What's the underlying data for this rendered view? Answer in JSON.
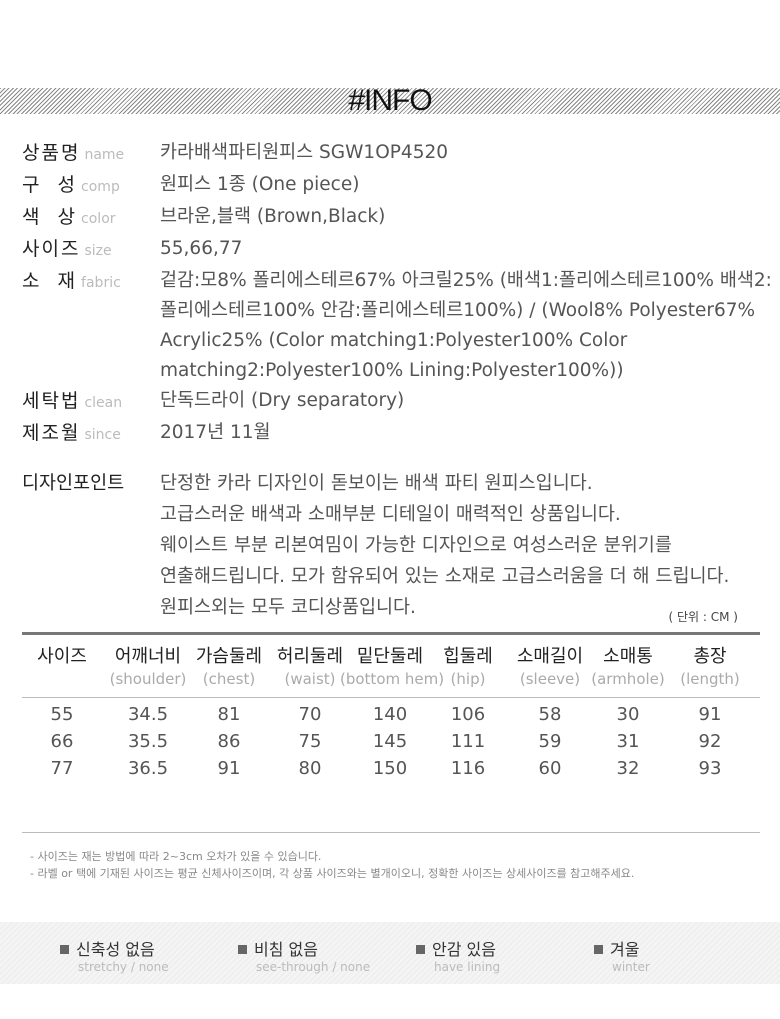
{
  "banner": {
    "title": "#INFO"
  },
  "info": [
    {
      "ko": "상품명",
      "en": "name",
      "value": "카라배색파티원피스  SGW1OP4520"
    },
    {
      "ko": "구  성",
      "en": "comp",
      "value": "원피스 1종 (One piece)"
    },
    {
      "ko": "색  상",
      "en": "color",
      "value": "브라운,블랙 (Brown,Black)"
    },
    {
      "ko": "사이즈",
      "en": "size",
      "value": "55,66,77"
    },
    {
      "ko": "소  재",
      "en": "fabric",
      "value": "겉감:모8% 폴리에스테르67% 아크릴25% (배색1:폴리에스테르100% 배색2:폴리에스테르100% 안감:폴리에스테르100%) / (Wool8% Polyester67% Acrylic25% (Color matching1:Polyester100% Color matching2:Polyester100% Lining:Polyester100%))"
    },
    {
      "ko": "세탁법",
      "en": "clean",
      "value": "단독드라이 (Dry separatory)"
    },
    {
      "ko": "제조월",
      "en": "since",
      "value": "2017년 11월"
    }
  ],
  "design": {
    "label": "디자인포인트",
    "text": "단정한 카라 디자인이 돋보이는 배색 파티 원피스입니다.\n고급스러운 배색과 소매부분 디테일이 매력적인 상품입니다.\n웨이스트 부분 리본여밈이 가능한 디자인으로 여성스러운 분위기를\n연출해드립니다. 모가 함유되어 있는 소재로 고급스러움을 더 해 드립니다.\n원피스외는 모두 코디상품입니다."
  },
  "size_table": {
    "unit": "( 단위 : CM )",
    "headers": [
      {
        "ko": "사이즈",
        "en": ""
      },
      {
        "ko": "어깨너비",
        "en": "(shoulder)"
      },
      {
        "ko": "가슴둘레",
        "en": "(chest)"
      },
      {
        "ko": "허리둘레",
        "en": "(waist)"
      },
      {
        "ko": "밑단둘레",
        "en": "(bottom hem)"
      },
      {
        "ko": "힙둘레",
        "en": "(hip)"
      },
      {
        "ko": "소매길이",
        "en": "(sleeve)"
      },
      {
        "ko": "소매통",
        "en": "(armhole)"
      },
      {
        "ko": "총장",
        "en": "(length)"
      }
    ],
    "rows": [
      [
        "55",
        "34.5",
        "81",
        "70",
        "140",
        "106",
        "58",
        "30",
        "91"
      ],
      [
        "66",
        "35.5",
        "86",
        "75",
        "145",
        "111",
        "59",
        "31",
        "92"
      ],
      [
        "77",
        "36.5",
        "91",
        "80",
        "150",
        "116",
        "60",
        "32",
        "93"
      ]
    ]
  },
  "notes": [
    "- 사이즈는 재는 방법에 따라 2~3cm 오차가 있을 수 있습니다.",
    "- 라벨 or 택에 기재된 사이즈는 평균 신체사이즈이며, 각 상품 사이즈와는 별개이오니, 정확한 사이즈는 상세사이즈를 참고해주세요."
  ],
  "features": [
    {
      "ko": "신축성 없음",
      "en": "stretchy / none"
    },
    {
      "ko": "비침 없음",
      "en": "see-through / none"
    },
    {
      "ko": "안감 있음",
      "en": "have lining"
    },
    {
      "ko": "겨울",
      "en": "winter"
    }
  ]
}
